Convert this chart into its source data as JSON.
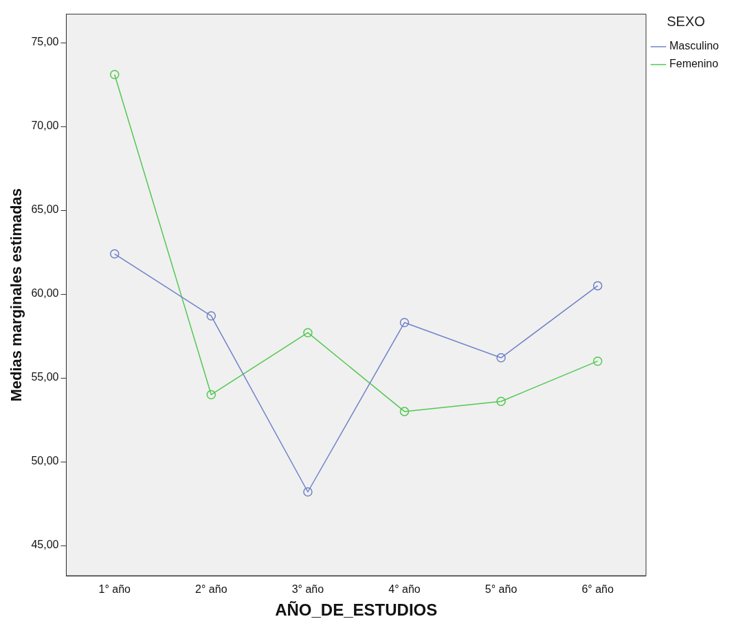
{
  "chart_data": {
    "type": "line",
    "xlabel": "AÑO_DE_ESTUDIOS",
    "ylabel": "Medias marginales estimadas",
    "legend_title": "SEXO",
    "legend": "top right",
    "marker": "circle",
    "line_style": "solid",
    "grid": false,
    "categories": [
      "1° año",
      "2° año",
      "3° año",
      "4° año",
      "5° año",
      "6° año"
    ],
    "series": [
      {
        "name": "Masculino",
        "color": "#7080c8",
        "values": [
          62.4,
          58.7,
          48.2,
          58.3,
          56.2,
          60.5
        ]
      },
      {
        "name": "Femenino",
        "color": "#50c850",
        "values": [
          73.1,
          54.0,
          57.7,
          53.0,
          53.6,
          56.0
        ]
      }
    ],
    "ylim": [
      43.2,
      76.7
    ],
    "yticks": [
      {
        "value": 45,
        "label": "45,00"
      },
      {
        "value": 50,
        "label": "50,00"
      },
      {
        "value": 55,
        "label": "55,00"
      },
      {
        "value": 60,
        "label": "60,00"
      },
      {
        "value": 65,
        "label": "65,00"
      },
      {
        "value": 70,
        "label": "70,00"
      },
      {
        "value": 75,
        "label": "75,00"
      }
    ]
  }
}
